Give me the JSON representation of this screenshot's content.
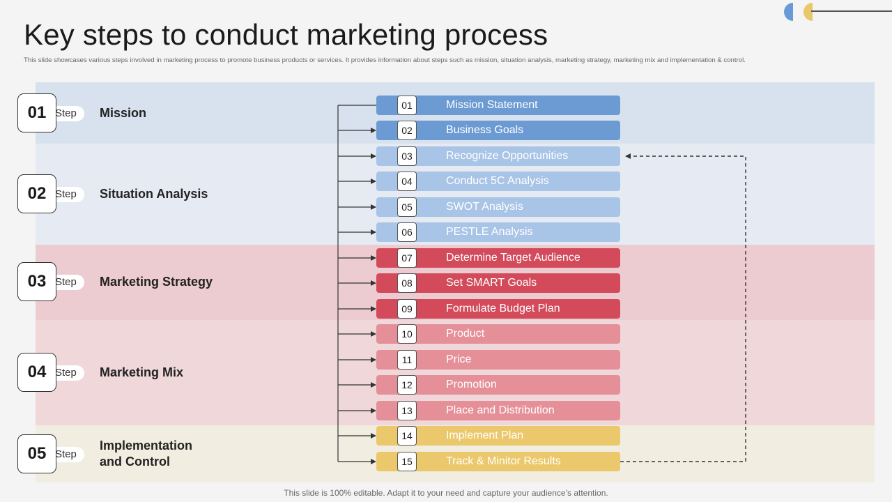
{
  "title": "Key steps to conduct marketing process",
  "subtitle": "This slide showcases various steps involved in marketing process to promote business products or services. It provides information about steps such as mission, situation analysis, marketing strategy, marketing mix and implementation & control.",
  "footer": "This slide is 100% editable. Adapt it to your need and capture your audience’s attention.",
  "step_word": "Step",
  "colors": {
    "band_mission": "#d8e2ee",
    "band_situation": "#e6ebf3",
    "band_strategy": "#edccd1",
    "band_mix": "#efd7da",
    "band_impl": "#f1ede0",
    "blue_dark": "#6c9bd3",
    "blue_light": "#a8c4e6",
    "red_dark": "#d34b5a",
    "red_light": "#e59099",
    "yellow": "#ebc86b"
  },
  "steps": [
    {
      "num": "01",
      "label": "Mission"
    },
    {
      "num": "02",
      "label": "Situation Analysis"
    },
    {
      "num": "03",
      "label": "Marketing Strategy"
    },
    {
      "num": "04",
      "label": "Marketing Mix"
    },
    {
      "num": "05",
      "label": "Implementation\nand Control"
    }
  ],
  "items": [
    {
      "num": "01",
      "label": "Mission Statement"
    },
    {
      "num": "02",
      "label": "Business Goals"
    },
    {
      "num": "03",
      "label": "Recognize Opportunities"
    },
    {
      "num": "04",
      "label": "Conduct 5C Analysis"
    },
    {
      "num": "05",
      "label": "SWOT Analysis"
    },
    {
      "num": "06",
      "label": "PESTLE Analysis"
    },
    {
      "num": "07",
      "label": "Determine Target Audience"
    },
    {
      "num": "08",
      "label": "Set SMART Goals"
    },
    {
      "num": "09",
      "label": "Formulate Budget Plan"
    },
    {
      "num": "10",
      "label": "Product"
    },
    {
      "num": "11",
      "label": "Price"
    },
    {
      "num": "12",
      "label": "Promotion"
    },
    {
      "num": "13",
      "label": "Place and Distribution"
    },
    {
      "num": "14",
      "label": "Implement  Plan"
    },
    {
      "num": "15",
      "label": "Track & Minitor Results"
    }
  ]
}
